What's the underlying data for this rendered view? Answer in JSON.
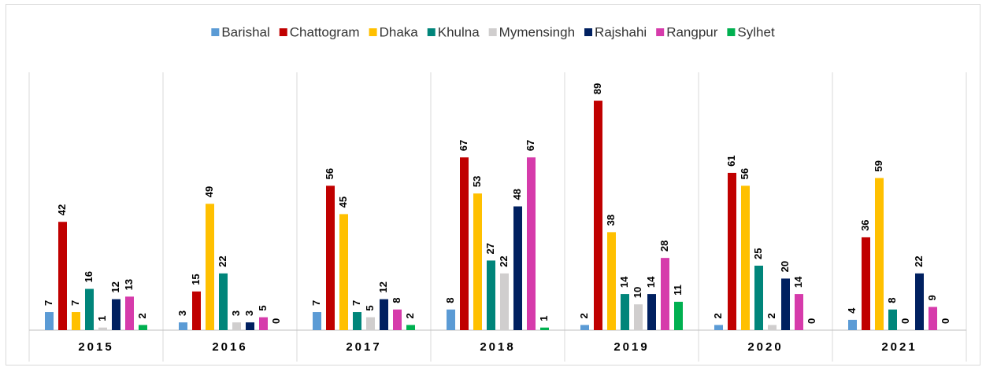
{
  "chart_data": {
    "type": "bar",
    "categories": [
      "2015",
      "2016",
      "2017",
      "2018",
      "2019",
      "2020",
      "2021"
    ],
    "series": [
      {
        "name": "Barishal",
        "color": "#5b9bd5",
        "values": [
          7,
          3,
          7,
          8,
          2,
          2,
          4
        ]
      },
      {
        "name": "Chattogram",
        "color": "#c00000",
        "values": [
          42,
          15,
          56,
          67,
          89,
          61,
          36
        ]
      },
      {
        "name": "Dhaka",
        "color": "#ffc000",
        "values": [
          7,
          49,
          45,
          53,
          38,
          56,
          59
        ]
      },
      {
        "name": "Khulna",
        "color": "#00857a",
        "values": [
          16,
          22,
          7,
          27,
          14,
          25,
          8
        ]
      },
      {
        "name": "Mymensingh",
        "color": "#d0cece",
        "values": [
          1,
          3,
          5,
          22,
          10,
          2,
          0
        ]
      },
      {
        "name": "Rajshahi",
        "color": "#002060",
        "values": [
          12,
          3,
          12,
          48,
          14,
          20,
          22
        ]
      },
      {
        "name": "Rangpur",
        "color": "#d63bab",
        "values": [
          13,
          5,
          8,
          67,
          28,
          14,
          9
        ]
      },
      {
        "name": "Sylhet",
        "color": "#00b050",
        "values": [
          2,
          0,
          2,
          1,
          11,
          0,
          0
        ]
      }
    ],
    "ylim": [
      0,
      100
    ],
    "legend": "top"
  }
}
